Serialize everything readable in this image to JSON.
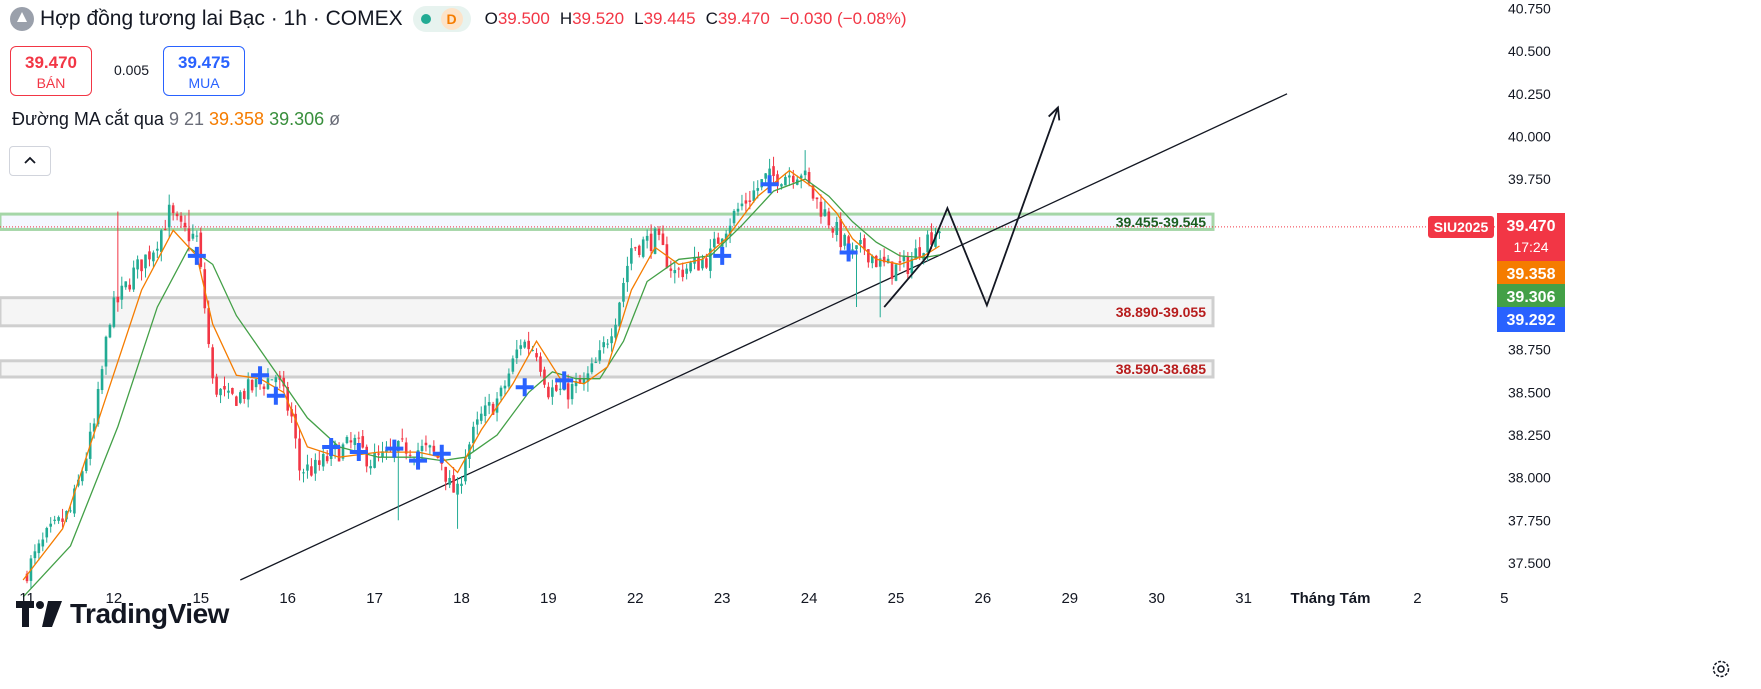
{
  "header": {
    "title": "Hợp đồng tương lai Bạc · 1h · COMEX",
    "status_badge": "D",
    "ohlc": {
      "o_label": "O",
      "o": "39.500",
      "h_label": "H",
      "h": "39.520",
      "l_label": "L",
      "l": "39.445",
      "c_label": "C",
      "c": "39.470"
    },
    "change": "−0.030 (−0.08%)"
  },
  "trade": {
    "sell_price": "39.470",
    "sell_label": "BÁN",
    "spread": "0.005",
    "buy_price": "39.475",
    "buy_label": "MUA"
  },
  "indicator": {
    "name": "Đường MA cắt qua",
    "params": "9 21",
    "fast_value": "39.358",
    "slow_value": "39.306",
    "extra": "ø"
  },
  "watermark": "TradingView",
  "colors": {
    "up": "#22ab94",
    "down": "#f23645",
    "ma_fast": "#f57c00",
    "ma_slow": "#43a047",
    "cross": "#2962ff",
    "zone_green": "#a5d6a7"
  },
  "icons": {
    "collapse": "chevron-up-icon",
    "settings": "gear-icon",
    "logo": "silver-logo-icon"
  },
  "chart_data": {
    "type": "candlestick",
    "symbol": "SIU2025",
    "ylim": [
      37.4,
      40.8
    ],
    "y_ticks": [
      "40.750",
      "40.500",
      "40.250",
      "40.000",
      "39.750",
      "39.500",
      "39.250",
      "39.000",
      "38.750",
      "38.500",
      "38.250",
      "38.000",
      "37.750",
      "37.500"
    ],
    "x_ticks": [
      {
        "label": "11",
        "bar": 1
      },
      {
        "label": "12",
        "bar": 23
      },
      {
        "label": "15",
        "bar": 45
      },
      {
        "label": "16",
        "bar": 67
      },
      {
        "label": "17",
        "bar": 89
      },
      {
        "label": "18",
        "bar": 111
      },
      {
        "label": "19",
        "bar": 133
      },
      {
        "label": "22",
        "bar": 155
      },
      {
        "label": "23",
        "bar": 177
      },
      {
        "label": "24",
        "bar": 199
      },
      {
        "label": "25",
        "bar": 221
      },
      {
        "label": "26",
        "bar": 243
      },
      {
        "label": "29",
        "bar": 265
      },
      {
        "label": "30",
        "bar": 287
      },
      {
        "label": "31",
        "bar": 309
      },
      {
        "label": "Tháng Tám",
        "bar": 331
      },
      {
        "label": "2",
        "bar": 353
      },
      {
        "label": "5",
        "bar": 375
      }
    ],
    "last_bar": 232,
    "close_path": [
      [
        0,
        37.42
      ],
      [
        6,
        37.65
      ],
      [
        12,
        37.8
      ],
      [
        18,
        38.3
      ],
      [
        22,
        38.95
      ],
      [
        28,
        39.2
      ],
      [
        33,
        39.35
      ],
      [
        37,
        39.55
      ],
      [
        40,
        39.45
      ],
      [
        44,
        39.4
      ],
      [
        46,
        39.0
      ],
      [
        48,
        38.55
      ],
      [
        52,
        38.45
      ],
      [
        56,
        38.5
      ],
      [
        60,
        38.55
      ],
      [
        64,
        38.6
      ],
      [
        68,
        38.35
      ],
      [
        70,
        38.05
      ],
      [
        74,
        38.05
      ],
      [
        79,
        38.15
      ],
      [
        84,
        38.2
      ],
      [
        88,
        38.1
      ],
      [
        92,
        38.12
      ],
      [
        97,
        38.18
      ],
      [
        103,
        38.15
      ],
      [
        106,
        38.1
      ],
      [
        108,
        37.95
      ],
      [
        110,
        37.9
      ],
      [
        112,
        38.15
      ],
      [
        116,
        38.35
      ],
      [
        121,
        38.48
      ],
      [
        126,
        38.8
      ],
      [
        130,
        38.75
      ],
      [
        133,
        38.52
      ],
      [
        137,
        38.5
      ],
      [
        142,
        38.55
      ],
      [
        146,
        38.7
      ],
      [
        150,
        38.95
      ],
      [
        154,
        39.35
      ],
      [
        160,
        39.4
      ],
      [
        165,
        39.2
      ],
      [
        170,
        39.25
      ],
      [
        174,
        39.3
      ],
      [
        177,
        39.45
      ],
      [
        182,
        39.6
      ],
      [
        188,
        39.75
      ],
      [
        193,
        39.78
      ],
      [
        197,
        39.8
      ],
      [
        200,
        39.65
      ],
      [
        203,
        39.55
      ],
      [
        207,
        39.4
      ],
      [
        210,
        39.3
      ],
      [
        213,
        39.35
      ],
      [
        217,
        39.25
      ],
      [
        220,
        39.22
      ],
      [
        224,
        39.25
      ],
      [
        228,
        39.38
      ],
      [
        232,
        39.47
      ]
    ],
    "spikes": [
      [
        24,
        39.56
      ],
      [
        42,
        39.57
      ],
      [
        95,
        37.75
      ],
      [
        110,
        37.7
      ],
      [
        198,
        39.92
      ],
      [
        211,
        39.0
      ],
      [
        217,
        38.94
      ]
    ],
    "ma_fast_path": [
      [
        0,
        37.4
      ],
      [
        10,
        37.7
      ],
      [
        20,
        38.4
      ],
      [
        30,
        39.1
      ],
      [
        38,
        39.45
      ],
      [
        44,
        39.3
      ],
      [
        48,
        38.9
      ],
      [
        54,
        38.6
      ],
      [
        60,
        38.58
      ],
      [
        66,
        38.5
      ],
      [
        72,
        38.18
      ],
      [
        80,
        38.12
      ],
      [
        90,
        38.15
      ],
      [
        100,
        38.15
      ],
      [
        106,
        38.12
      ],
      [
        110,
        38.03
      ],
      [
        116,
        38.28
      ],
      [
        124,
        38.55
      ],
      [
        130,
        38.8
      ],
      [
        136,
        38.58
      ],
      [
        142,
        38.55
      ],
      [
        148,
        38.65
      ],
      [
        154,
        39.1
      ],
      [
        160,
        39.35
      ],
      [
        166,
        39.25
      ],
      [
        172,
        39.28
      ],
      [
        178,
        39.4
      ],
      [
        186,
        39.65
      ],
      [
        194,
        39.8
      ],
      [
        200,
        39.7
      ],
      [
        206,
        39.55
      ],
      [
        210,
        39.4
      ],
      [
        216,
        39.28
      ],
      [
        222,
        39.25
      ],
      [
        228,
        39.3
      ],
      [
        232,
        39.358
      ]
    ],
    "ma_slow_path": [
      [
        0,
        37.3
      ],
      [
        12,
        37.6
      ],
      [
        24,
        38.3
      ],
      [
        34,
        39.0
      ],
      [
        42,
        39.35
      ],
      [
        48,
        39.25
      ],
      [
        54,
        38.95
      ],
      [
        60,
        38.75
      ],
      [
        66,
        38.55
      ],
      [
        72,
        38.35
      ],
      [
        80,
        38.18
      ],
      [
        90,
        38.12
      ],
      [
        100,
        38.12
      ],
      [
        106,
        38.1
      ],
      [
        112,
        38.12
      ],
      [
        120,
        38.25
      ],
      [
        128,
        38.5
      ],
      [
        134,
        38.62
      ],
      [
        140,
        38.58
      ],
      [
        146,
        38.58
      ],
      [
        152,
        38.8
      ],
      [
        158,
        39.15
      ],
      [
        166,
        39.28
      ],
      [
        174,
        39.3
      ],
      [
        182,
        39.48
      ],
      [
        190,
        39.68
      ],
      [
        198,
        39.75
      ],
      [
        204,
        39.65
      ],
      [
        210,
        39.5
      ],
      [
        216,
        39.38
      ],
      [
        222,
        39.3
      ],
      [
        228,
        39.29
      ],
      [
        232,
        39.306
      ]
    ],
    "crosses": [
      [
        44,
        39.3
      ],
      [
        60,
        38.6
      ],
      [
        64,
        38.48
      ],
      [
        78,
        38.18
      ],
      [
        85,
        38.15
      ],
      [
        94,
        38.17
      ],
      [
        100,
        38.1
      ],
      [
        106,
        38.14
      ],
      [
        127,
        38.53
      ],
      [
        137,
        38.57
      ],
      [
        177,
        39.3
      ],
      [
        189,
        39.72
      ],
      [
        209,
        39.32
      ]
    ],
    "zones": [
      {
        "from": 39.455,
        "to": 39.545,
        "label": "39.455-39.545",
        "style": "green"
      },
      {
        "from": 38.89,
        "to": 39.055,
        "label": "38.890-39.055",
        "style": "gray"
      },
      {
        "from": 38.59,
        "to": 38.685,
        "label": "38.590-38.685",
        "style": "gray"
      }
    ],
    "trendline": [
      [
        55,
        37.4
      ],
      [
        320,
        40.25
      ]
    ],
    "projection": [
      [
        218,
        39.0
      ],
      [
        229,
        39.3
      ],
      [
        234,
        39.58
      ],
      [
        244,
        39.01
      ],
      [
        262,
        40.17
      ]
    ],
    "last_price_labels": [
      {
        "text": "SIU2025",
        "value": 39.47,
        "bg": "#f23645",
        "role": "symbol"
      },
      {
        "text": "39.470",
        "sub": "17:24",
        "value": 39.47,
        "bg": "#f23645"
      },
      {
        "text": "39.358",
        "value": 39.358,
        "bg": "#f57c00"
      },
      {
        "text": "39.306",
        "value": 39.306,
        "bg": "#43a047"
      },
      {
        "text": "39.292",
        "value": 39.292,
        "bg": "#2962ff"
      }
    ]
  }
}
